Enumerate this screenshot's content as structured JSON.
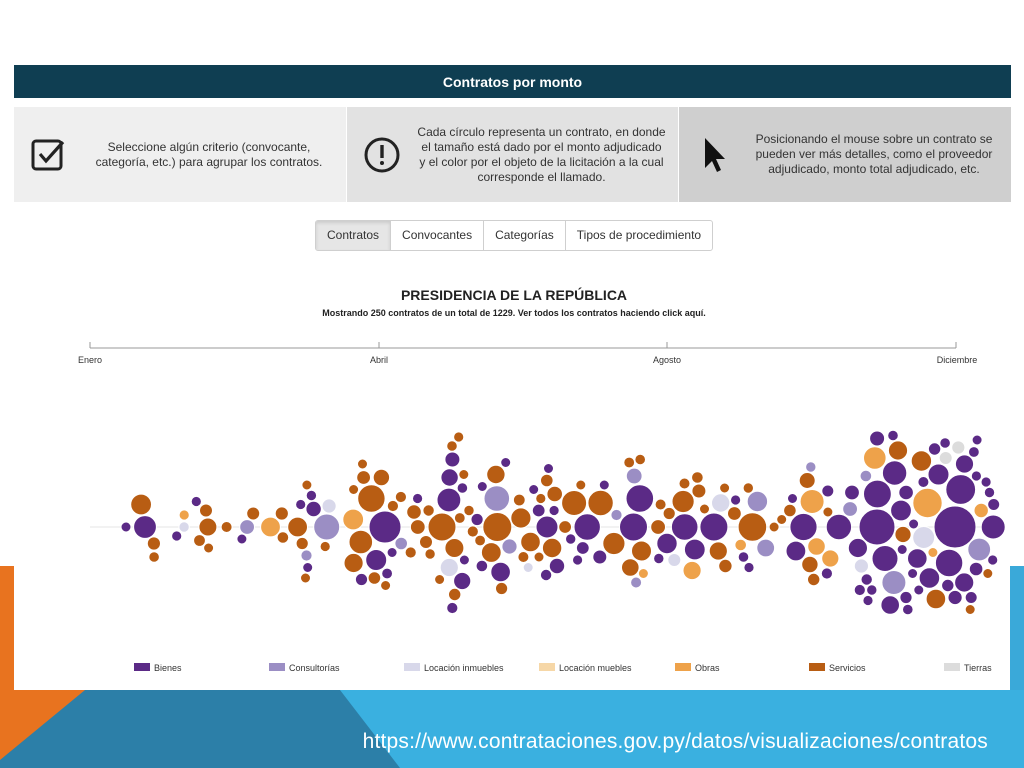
{
  "footer": {
    "url": "https://www.contrataciones.gov.py/datos/visualizaciones/contratos"
  },
  "header": {
    "title": "Contratos por monto"
  },
  "info_boxes": [
    {
      "icon": "checkbox-icon",
      "text": "Seleccione algún criterio (convocante, categoría, etc.) para agrupar los contratos."
    },
    {
      "icon": "exclamation-icon",
      "text": "Cada círculo representa un contrato, en donde el tamaño está dado por el monto adjudicado y el color por el objeto de la licitación a la cual corresponde el llamado."
    },
    {
      "icon": "cursor-icon",
      "text": "Posicionando el mouse sobre un contrato se pueden ver más detalles, como el proveedor adjudicado, monto total adjudicado, etc."
    }
  ],
  "tabs": [
    {
      "label": "Contratos",
      "active": true
    },
    {
      "label": "Convocantes",
      "active": false
    },
    {
      "label": "Categorías",
      "active": false
    },
    {
      "label": "Tipos de procedimiento",
      "active": false
    }
  ],
  "chart": {
    "title": "PRESIDENCIA DE LA REPÚBLICA",
    "subtitle": "Mostrando 250 contratos de un total de 1229. Ver todos los contratos haciendo click aquí."
  },
  "chart_data": {
    "type": "scatter",
    "subtype": "beeswarm bubble",
    "x_axis_ticks": [
      "Enero",
      "Abril",
      "Agosto",
      "Diciembre"
    ],
    "shown_contracts": 250,
    "total_contracts": 1229,
    "legend": [
      {
        "name": "Bienes",
        "color": "#5b2a86"
      },
      {
        "name": "Consultorías",
        "color": "#9b8ec4"
      },
      {
        "name": "Locación inmuebles",
        "color": "#d8d8ea"
      },
      {
        "name": "Locación muebles",
        "color": "#f6d7a7"
      },
      {
        "name": "Obras",
        "color": "#eea24a"
      },
      {
        "name": "Servicios",
        "color": "#b85d13"
      },
      {
        "name": "Tierras",
        "color": "#dcdcdc"
      }
    ],
    "legend_position": "bottom"
  }
}
